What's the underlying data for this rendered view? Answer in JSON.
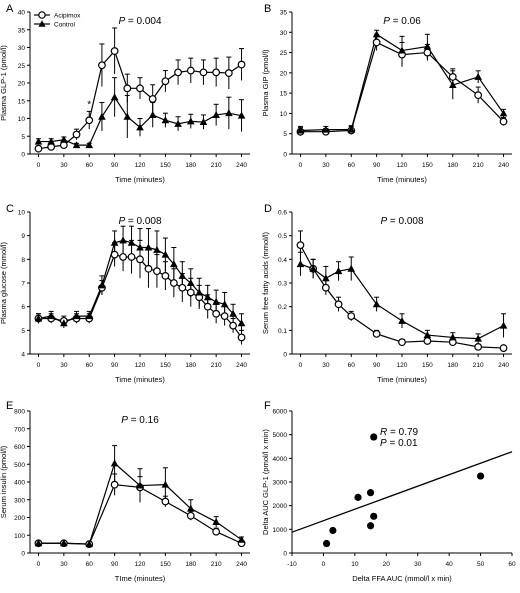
{
  "chart_data": [
    {
      "panel": "A",
      "type": "line",
      "ylabel": "Plasma GLP-1 (pmol/l)",
      "xlabel": "Time (minutes)",
      "pvalue": "P = 0.004",
      "annotation": "*",
      "xlim": [
        -10,
        250
      ],
      "xticks": [
        0,
        30,
        60,
        90,
        120,
        150,
        180,
        210,
        240
      ],
      "ylim": [
        0,
        40
      ],
      "yticks": [
        0,
        5,
        10,
        15,
        20,
        25,
        30,
        35,
        40
      ],
      "legend": [
        "Acipimox",
        "Control"
      ],
      "series": [
        {
          "name": "Acipimox",
          "marker": "circle-open",
          "x": [
            0,
            15,
            30,
            45,
            60,
            75,
            90,
            105,
            120,
            135,
            150,
            165,
            180,
            195,
            210,
            225,
            240
          ],
          "y": [
            1.5,
            2.0,
            2.5,
            5.5,
            9.5,
            25.0,
            29.0,
            18.5,
            18.5,
            15.5,
            20.5,
            23.0,
            23.5,
            23.0,
            23.0,
            22.8,
            25.2
          ],
          "err": [
            0.8,
            0.8,
            1.0,
            1.5,
            2.5,
            6.0,
            6.5,
            4.0,
            3.0,
            4.0,
            3.0,
            3.5,
            3.5,
            3.5,
            4.0,
            4.5,
            4.5
          ]
        },
        {
          "name": "Control",
          "marker": "triangle-filled",
          "x": [
            0,
            15,
            30,
            45,
            60,
            75,
            90,
            105,
            120,
            135,
            150,
            165,
            180,
            195,
            210,
            225,
            240
          ],
          "y": [
            3.5,
            3.5,
            4.0,
            2.5,
            2.5,
            10.5,
            16.0,
            10.5,
            7.5,
            11.0,
            9.5,
            8.5,
            9.2,
            9.0,
            11.0,
            11.5,
            10.8
          ],
          "err": [
            0.8,
            0.8,
            0.8,
            0.5,
            0.5,
            4.0,
            5.5,
            6.0,
            2.5,
            3.5,
            2.0,
            2.0,
            2.0,
            2.0,
            3.0,
            4.5,
            4.5
          ]
        }
      ]
    },
    {
      "panel": "B",
      "type": "line",
      "ylabel": "Plasma GIP (pmol/l)",
      "xlabel": "Time (minutes)",
      "pvalue": "P = 0.06",
      "xlim": [
        -10,
        250
      ],
      "xticks": [
        0,
        30,
        60,
        90,
        120,
        150,
        180,
        210,
        240
      ],
      "ylim": [
        0,
        35
      ],
      "yticks": [
        0,
        5,
        10,
        15,
        20,
        25,
        30,
        35
      ],
      "series": [
        {
          "name": "Acipimox",
          "marker": "circle-open",
          "x": [
            0,
            30,
            60,
            90,
            120,
            150,
            180,
            210,
            240
          ],
          "y": [
            5.5,
            5.5,
            5.8,
            27.5,
            24.5,
            25.0,
            19.0,
            14.5,
            8.0
          ],
          "err": [
            1.0,
            0.8,
            1.0,
            2.0,
            3.0,
            2.0,
            2.0,
            2.0,
            1.0
          ]
        },
        {
          "name": "Control",
          "marker": "triangle-filled",
          "x": [
            0,
            30,
            60,
            90,
            120,
            150,
            180,
            210,
            240
          ],
          "y": [
            5.8,
            6.0,
            6.0,
            29.5,
            25.5,
            26.5,
            17.0,
            19.0,
            10.0
          ],
          "err": [
            1.0,
            0.8,
            1.0,
            1.0,
            3.5,
            3.0,
            3.5,
            1.5,
            1.0
          ]
        }
      ]
    },
    {
      "panel": "C",
      "type": "line",
      "ylabel": "Plasma glucose (mmol/l)",
      "xlabel": "Time (minutes)",
      "pvalue": "P = 0.008",
      "xlim": [
        -10,
        250
      ],
      "xticks": [
        0,
        30,
        60,
        90,
        120,
        150,
        180,
        210,
        240
      ],
      "ylim": [
        4,
        10
      ],
      "yticks": [
        4,
        5,
        6,
        7,
        8,
        9,
        10
      ],
      "series": [
        {
          "name": "Acipimox",
          "marker": "circle-open",
          "x": [
            0,
            15,
            30,
            45,
            60,
            75,
            90,
            100,
            110,
            120,
            130,
            140,
            150,
            160,
            170,
            180,
            190,
            200,
            210,
            220,
            230,
            240
          ],
          "y": [
            5.5,
            5.5,
            5.4,
            5.5,
            5.5,
            6.8,
            8.2,
            8.1,
            8.1,
            8.0,
            7.6,
            7.5,
            7.3,
            7.0,
            6.8,
            6.6,
            6.4,
            6.0,
            5.7,
            5.6,
            5.2,
            4.7
          ],
          "err": [
            0.2,
            0.2,
            0.2,
            0.2,
            0.2,
            0.3,
            0.5,
            0.6,
            0.7,
            0.8,
            0.8,
            0.7,
            0.6,
            0.6,
            0.6,
            0.6,
            0.5,
            0.5,
            0.4,
            0.4,
            0.3,
            0.3
          ]
        },
        {
          "name": "Control",
          "marker": "triangle-filled",
          "x": [
            0,
            15,
            30,
            45,
            60,
            75,
            90,
            100,
            110,
            120,
            130,
            140,
            150,
            160,
            170,
            180,
            190,
            200,
            210,
            220,
            230,
            240
          ],
          "y": [
            5.5,
            5.6,
            5.3,
            5.6,
            5.6,
            6.9,
            8.7,
            8.8,
            8.7,
            8.5,
            8.5,
            8.4,
            8.2,
            7.8,
            7.3,
            7.0,
            6.6,
            6.4,
            6.2,
            6.1,
            5.7,
            5.3
          ],
          "err": [
            0.2,
            0.2,
            0.2,
            0.2,
            0.2,
            0.4,
            0.5,
            0.6,
            0.7,
            0.8,
            0.8,
            0.8,
            0.7,
            0.7,
            0.6,
            0.6,
            0.6,
            0.5,
            0.5,
            0.5,
            0.4,
            0.4
          ]
        }
      ]
    },
    {
      "panel": "D",
      "type": "line",
      "ylabel": "Serum free fatty acids (mmol/l)",
      "xlabel": "Time (minutes)",
      "pvalue": "P = 0.008",
      "xlim": [
        -10,
        250
      ],
      "xticks": [
        0,
        30,
        60,
        90,
        120,
        150,
        180,
        210,
        240
      ],
      "ylim": [
        0,
        0.6
      ],
      "yticks": [
        0,
        0.1,
        0.2,
        0.3,
        0.4,
        0.5,
        0.6
      ],
      "series": [
        {
          "name": "Acipimox",
          "marker": "circle-open",
          "x": [
            0,
            15,
            30,
            45,
            60,
            90,
            120,
            150,
            180,
            210,
            240
          ],
          "y": [
            0.46,
            0.36,
            0.28,
            0.21,
            0.16,
            0.085,
            0.05,
            0.055,
            0.05,
            0.03,
            0.025
          ],
          "err": [
            0.06,
            0.04,
            0.03,
            0.03,
            0.02,
            0.015,
            0.01,
            0.01,
            0.01,
            0.01,
            0.01
          ]
        },
        {
          "name": "Control",
          "marker": "triangle-filled",
          "x": [
            0,
            15,
            30,
            45,
            60,
            90,
            120,
            150,
            180,
            210,
            240
          ],
          "y": [
            0.38,
            0.36,
            0.32,
            0.35,
            0.36,
            0.21,
            0.14,
            0.08,
            0.07,
            0.065,
            0.12
          ],
          "err": [
            0.05,
            0.04,
            0.05,
            0.04,
            0.05,
            0.03,
            0.03,
            0.02,
            0.02,
            0.02,
            0.05
          ]
        }
      ]
    },
    {
      "panel": "E",
      "type": "line",
      "ylabel": "Serum insulin (pmol/l)",
      "xlabel": "TIme (minutes)",
      "pvalue": "P = 0.16",
      "xlim": [
        -10,
        250
      ],
      "xticks": [
        0,
        30,
        60,
        90,
        120,
        150,
        180,
        210,
        240
      ],
      "ylim": [
        0,
        800
      ],
      "yticks": [
        0,
        100,
        200,
        300,
        400,
        500,
        600,
        700,
        800
      ],
      "series": [
        {
          "name": "Acipimox",
          "marker": "circle-open",
          "x": [
            0,
            30,
            60,
            90,
            120,
            150,
            180,
            210,
            240
          ],
          "y": [
            55,
            55,
            50,
            385,
            370,
            290,
            210,
            120,
            55
          ],
          "err": [
            10,
            10,
            10,
            60,
            60,
            30,
            25,
            20,
            10
          ]
        },
        {
          "name": "Control",
          "marker": "triangle-filled",
          "x": [
            0,
            30,
            60,
            90,
            120,
            150,
            180,
            210,
            240
          ],
          "y": [
            55,
            55,
            50,
            505,
            380,
            385,
            250,
            175,
            75
          ],
          "err": [
            10,
            10,
            10,
            100,
            95,
            95,
            50,
            30,
            15
          ]
        }
      ]
    },
    {
      "panel": "F",
      "type": "scatter",
      "ylabel": "Delta AUC GLP-1 (pmol/l x min)",
      "xlabel": "Delta FFA AUC (mmol/l x min)",
      "r_text": "R = 0.79",
      "p_text": "P = 0.01",
      "xlim": [
        -10,
        60
      ],
      "xticks": [
        -10,
        0,
        10,
        20,
        30,
        40,
        50,
        60
      ],
      "ylim": [
        0,
        6000
      ],
      "yticks": [
        0,
        1000,
        2000,
        3000,
        4000,
        5000,
        6000
      ],
      "points": [
        {
          "x": 1,
          "y": 400
        },
        {
          "x": 3,
          "y": 950
        },
        {
          "x": 11,
          "y": 2350
        },
        {
          "x": 15,
          "y": 2550
        },
        {
          "x": 15,
          "y": 1150
        },
        {
          "x": 16,
          "y": 1550
        },
        {
          "x": 16,
          "y": 4900
        },
        {
          "x": 50,
          "y": 3250
        }
      ],
      "fit_line": {
        "x": [
          -10,
          60
        ],
        "y": [
          880,
          4280
        ]
      }
    }
  ]
}
